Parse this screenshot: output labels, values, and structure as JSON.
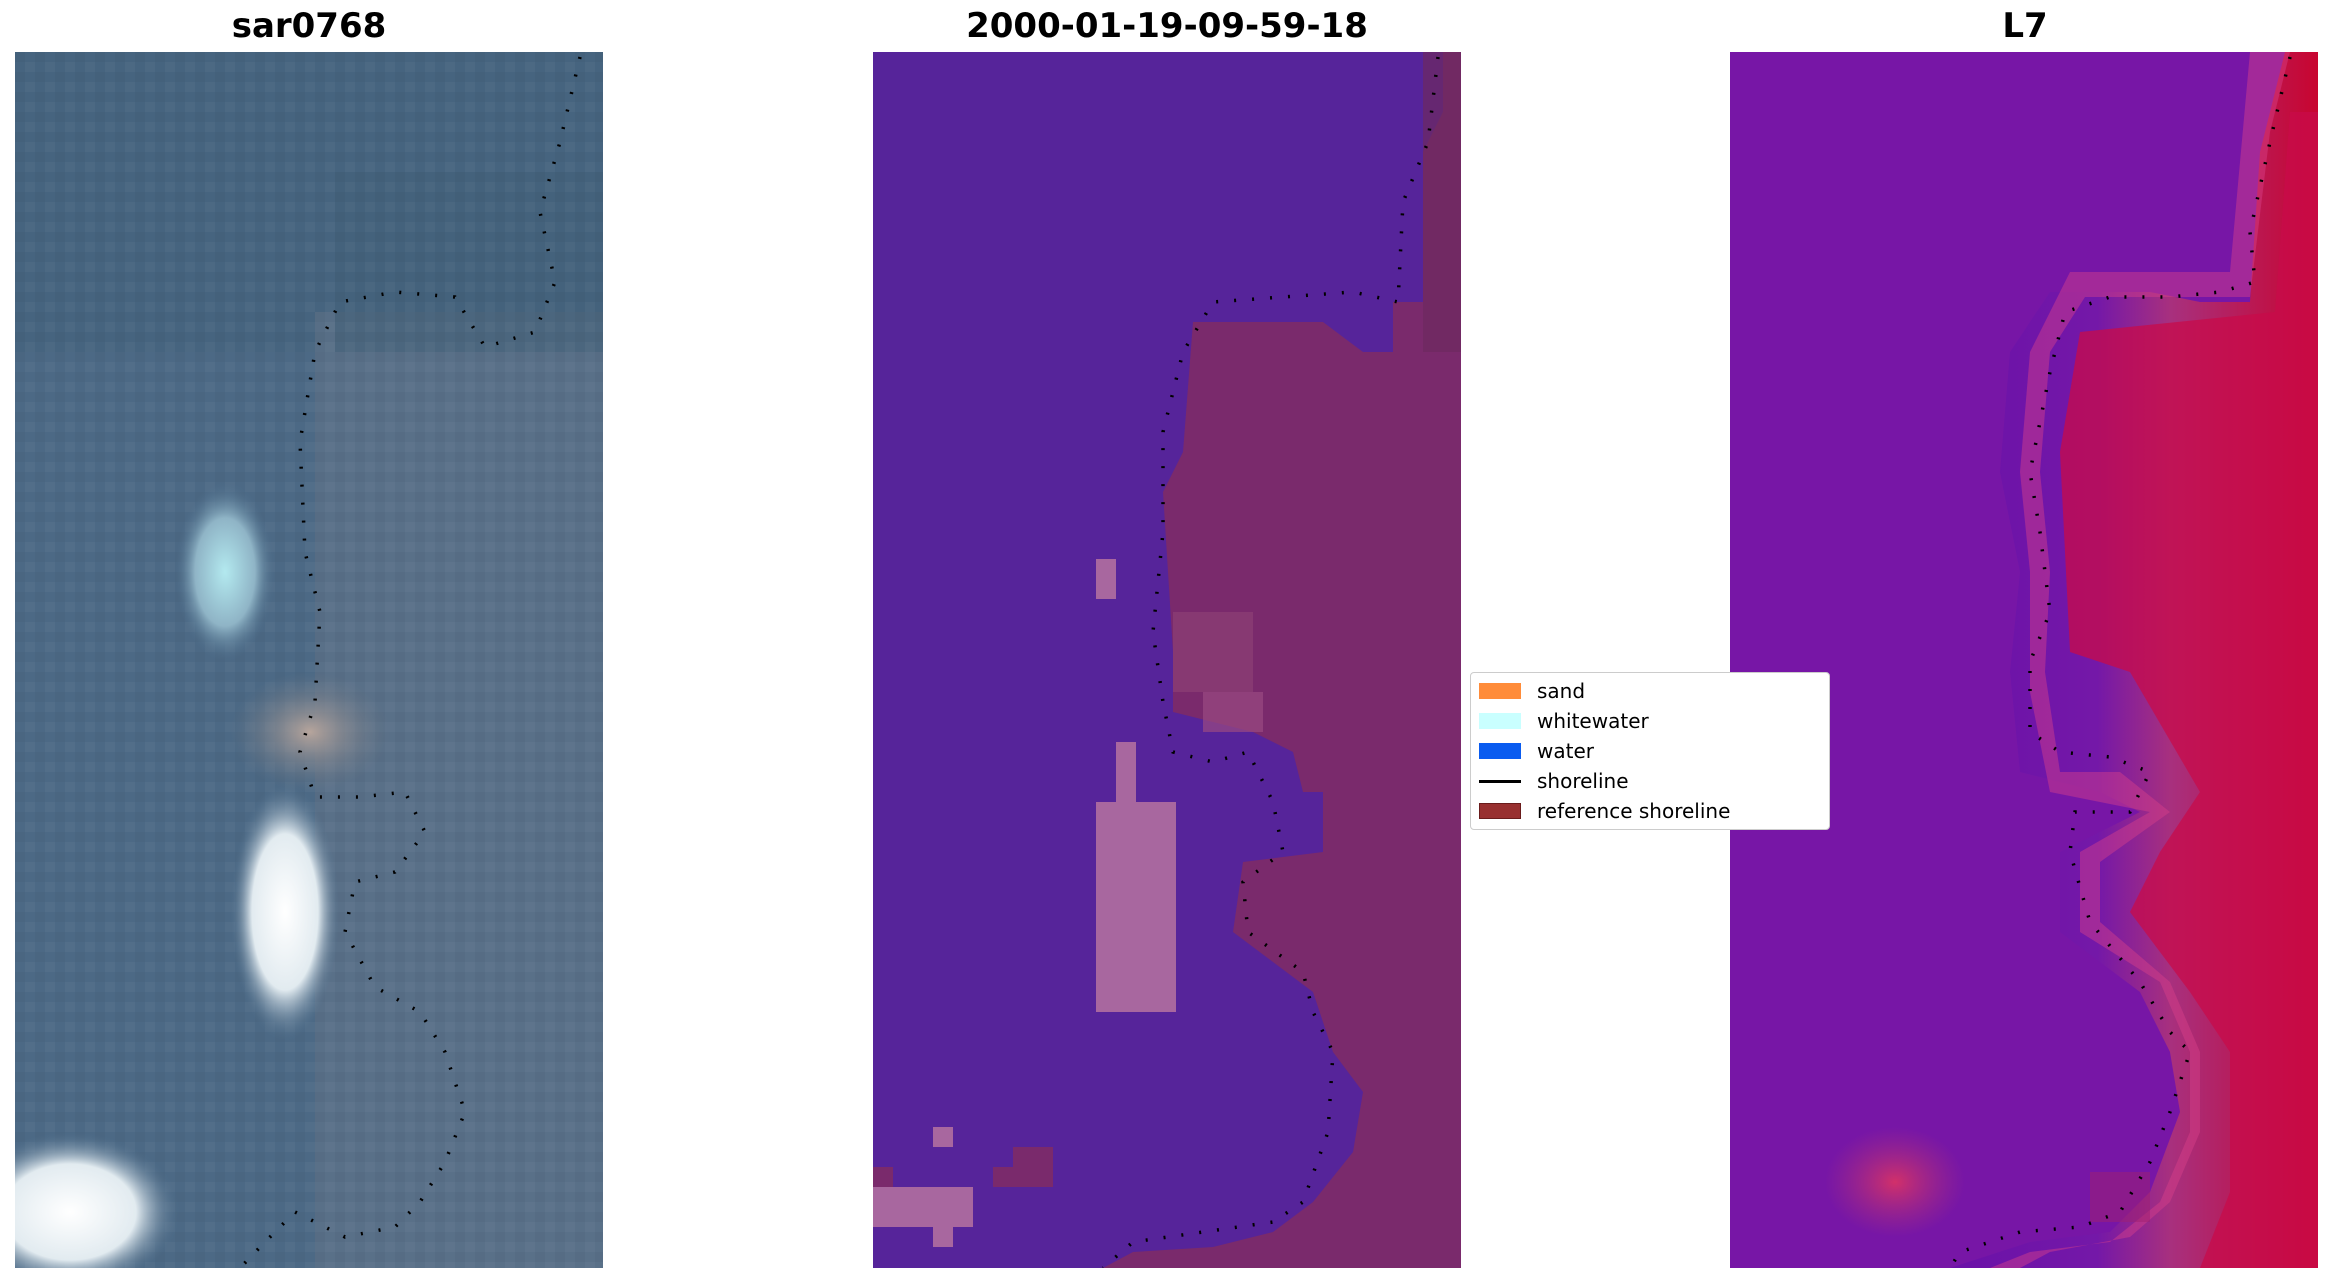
{
  "titles": {
    "left": "sar0768",
    "center": "2000-01-19-09-59-18",
    "right": "L7"
  },
  "legend": {
    "items": [
      {
        "label": "sand",
        "color": "#ff8c3a",
        "kind": "patch"
      },
      {
        "label": "whitewater",
        "color": "#c9ffff",
        "kind": "patch"
      },
      {
        "label": "water",
        "color": "#0a5cf0",
        "kind": "patch"
      },
      {
        "label": "shoreline",
        "color": "#000000",
        "kind": "line"
      },
      {
        "label": "reference shoreline",
        "color": "#983030",
        "kind": "patch"
      }
    ]
  },
  "colors": {
    "classified_water": "#56249a",
    "classified_land": "#7a2a6c",
    "classified_sand": "#a8679f",
    "index_low": "#6a11a8",
    "index_high": "#c80530"
  }
}
